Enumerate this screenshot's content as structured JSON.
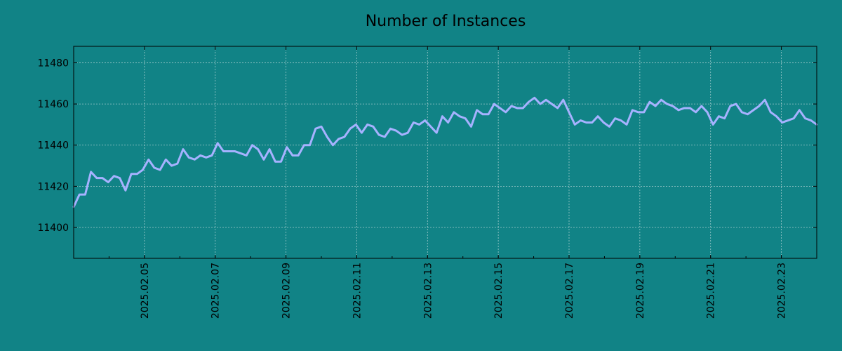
{
  "chart_data": {
    "type": "line",
    "title": "Number of Instances",
    "xlabel": "",
    "ylabel": "",
    "x_start": "2025-02-03",
    "x_end": "2025-02-24",
    "xlim": [
      "2025-02-03",
      "2025-02-24"
    ],
    "ylim": [
      11385,
      11488
    ],
    "y_ticks": [
      11400,
      11420,
      11440,
      11460,
      11480
    ],
    "x_ticks": [
      "2025.02.05",
      "2025.02.07",
      "2025.02.09",
      "2025.02.11",
      "2025.02.13",
      "2025.02.15",
      "2025.02.17",
      "2025.02.19",
      "2025.02.21",
      "2025.02.23"
    ],
    "grid": true,
    "legend": "none",
    "colors": {
      "background": "#118386",
      "line": "#a6b2ff"
    },
    "series": [
      {
        "values": [
          11410,
          11416,
          11416,
          11427,
          11424,
          11424,
          11422,
          11425,
          11424,
          11418,
          11426,
          11426,
          11428,
          11433,
          11429,
          11428,
          11433,
          11430,
          11431,
          11438,
          11434,
          11433,
          11435,
          11434,
          11435,
          11441,
          11437,
          11437,
          11437,
          11436,
          11435,
          11440,
          11438,
          11433,
          11438,
          11432,
          11432,
          11439,
          11435,
          11435,
          11440,
          11440,
          11448,
          11449,
          11444,
          11440,
          11443,
          11444,
          11448,
          11450,
          11446,
          11450,
          11449,
          11445,
          11444,
          11448,
          11447,
          11445,
          11446,
          11451,
          11450,
          11452,
          11449,
          11446,
          11454,
          11451,
          11456,
          11454,
          11453,
          11449,
          11457,
          11455,
          11455,
          11460,
          11458,
          11456,
          11459,
          11458,
          11458,
          11461,
          11463,
          11460,
          11462,
          11460,
          11458,
          11462,
          11456,
          11450,
          11452,
          11451,
          11451,
          11454,
          11451,
          11449,
          11453,
          11452,
          11450,
          11457,
          11456,
          11456,
          11461,
          11459,
          11462,
          11460,
          11459,
          11457,
          11458,
          11458,
          11456,
          11459,
          11456,
          11450,
          11454,
          11453,
          11459,
          11460,
          11456,
          11455,
          11457,
          11459,
          11462,
          11456,
          11454,
          11451,
          11452,
          11453,
          11457,
          11453,
          11452,
          11450
        ]
      }
    ]
  }
}
